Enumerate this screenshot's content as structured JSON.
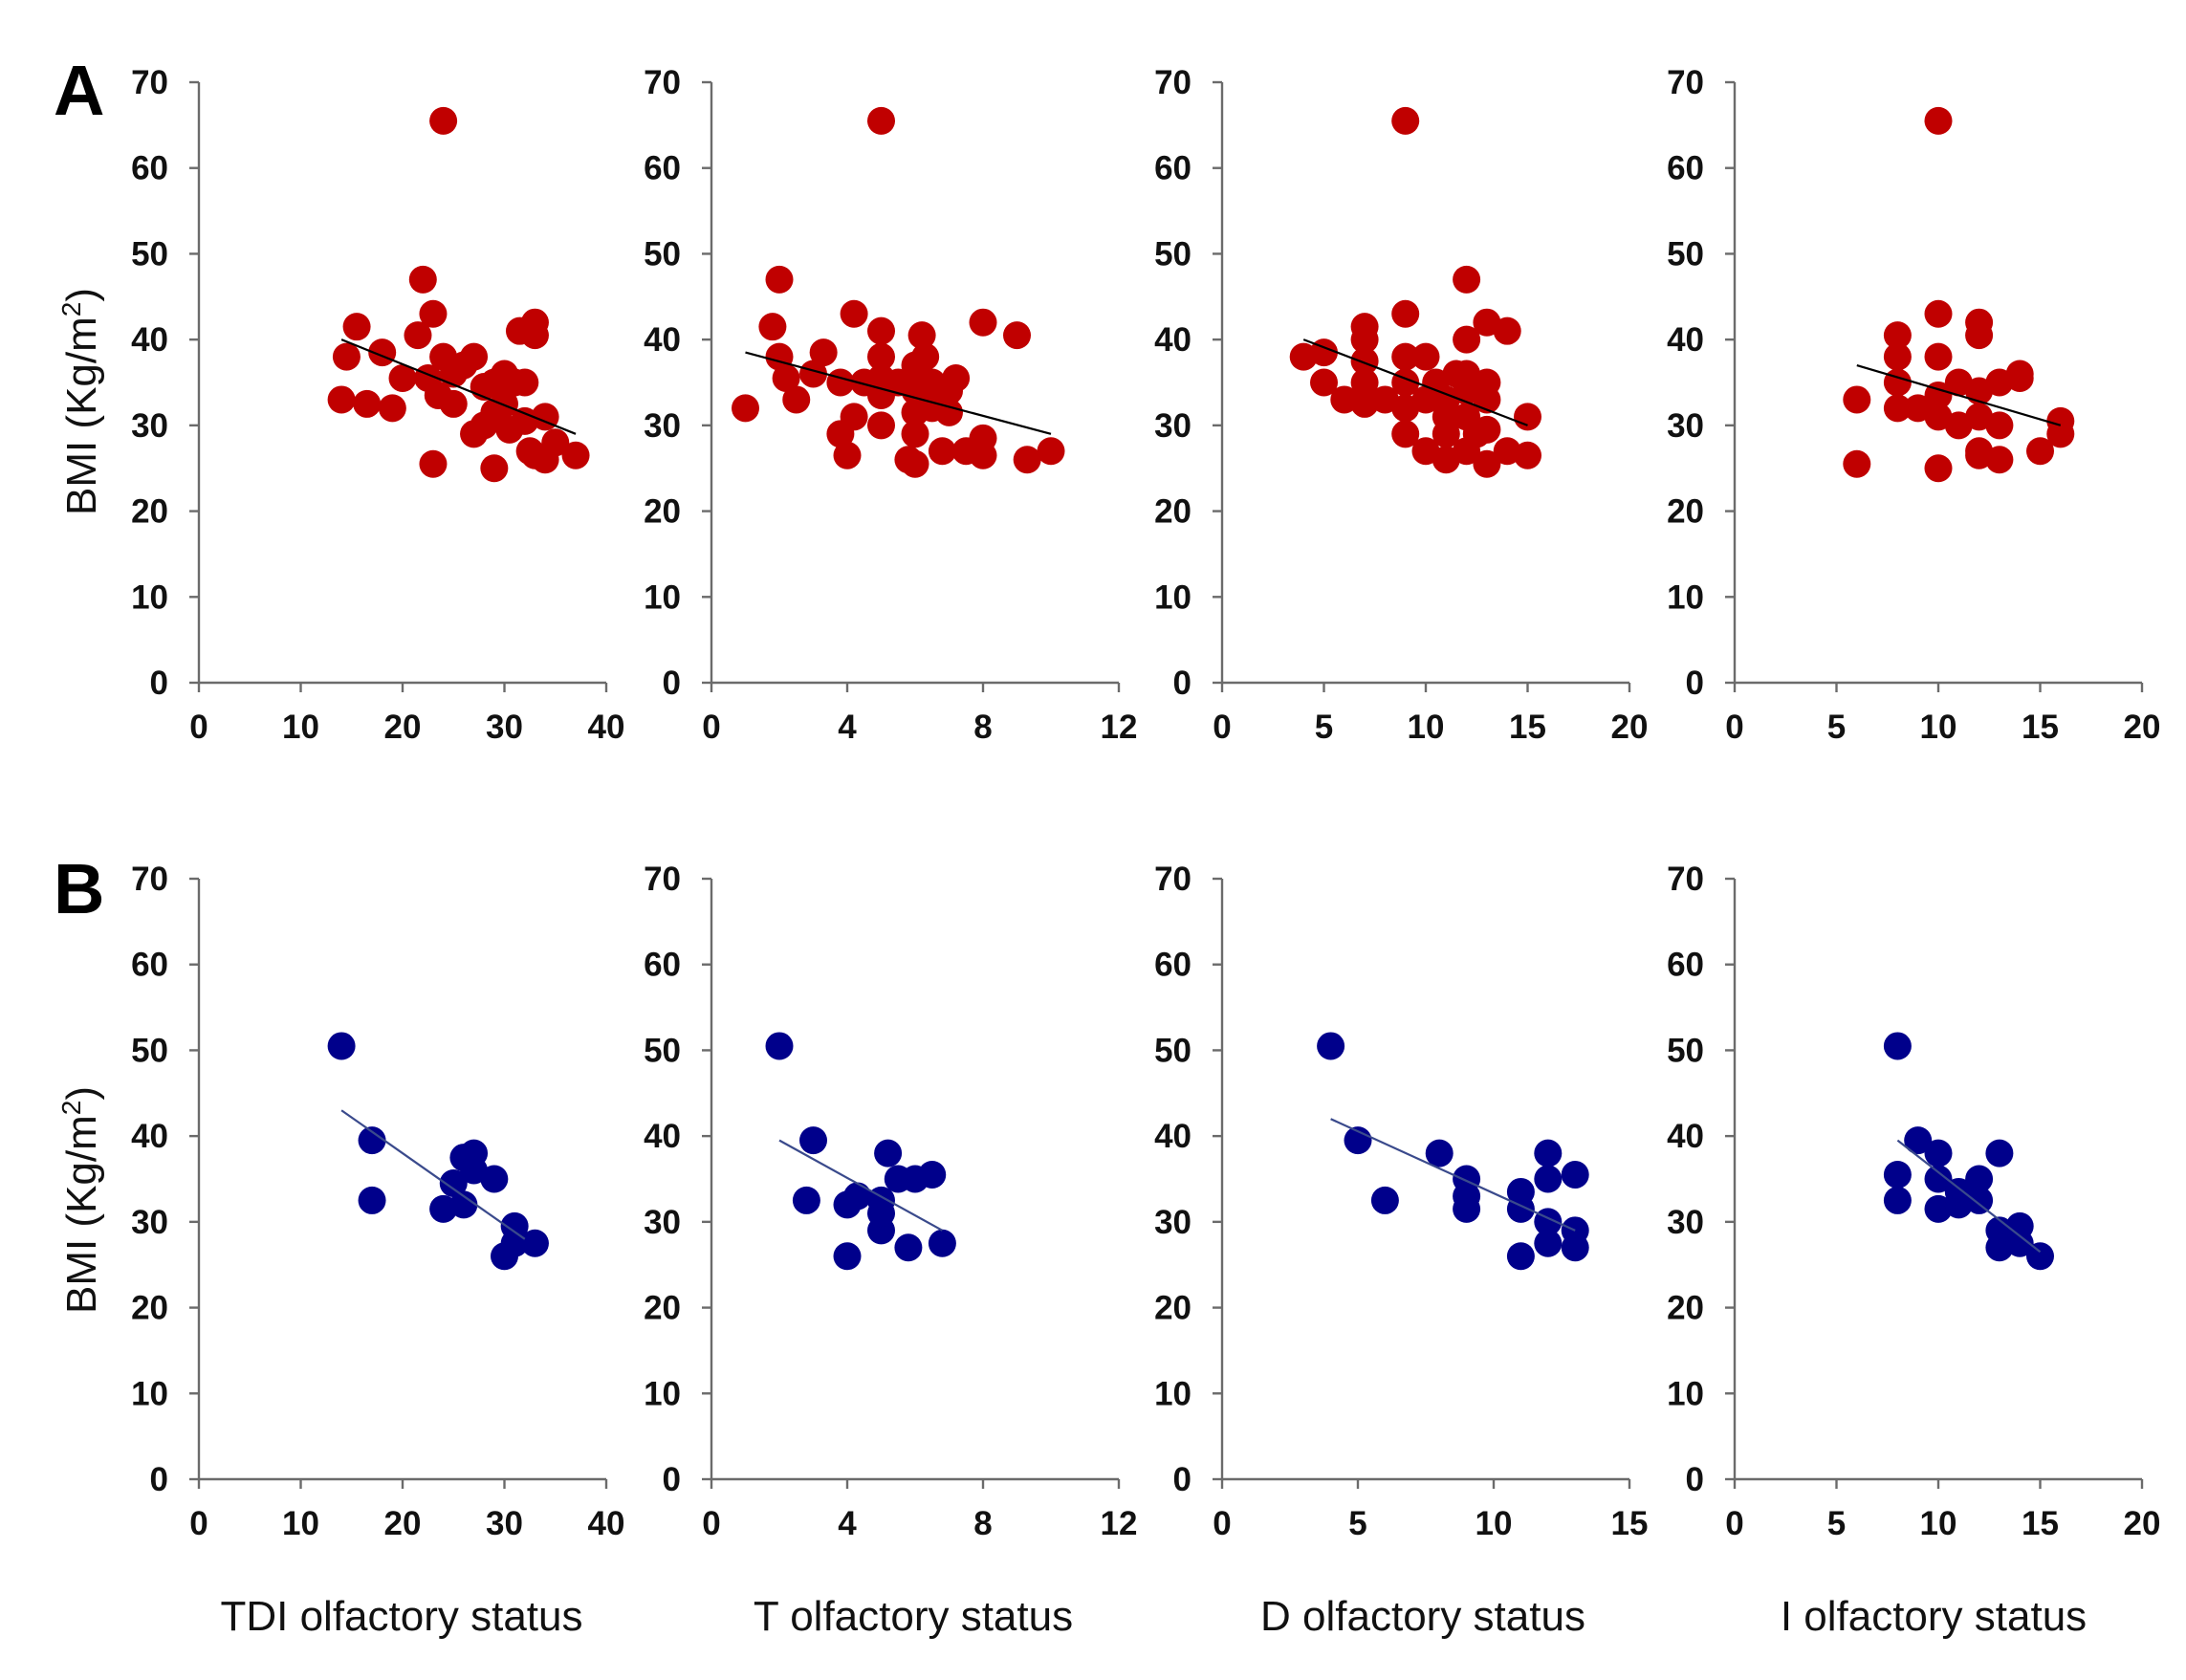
{
  "colors": {
    "row_a": "#c00000",
    "row_b": "#00008b",
    "axis": "#6b6b6b",
    "trend_a": "#000000",
    "trend_b": "#3a4a8c"
  },
  "labels": {
    "panel_a": "A",
    "panel_b": "B",
    "ylabel_main": "BMI (Kg/m",
    "ylabel_sup": "2",
    "ylabel_close": ")"
  },
  "xlabels": [
    "TDI olfactory status",
    "T olfactory status",
    "D olfactory status",
    "I olfactory status"
  ],
  "chart_data": [
    {
      "type": "scatter",
      "row": "A",
      "col": 0,
      "xlim": [
        0,
        40
      ],
      "xticks": [
        0,
        10,
        20,
        30,
        40
      ],
      "ylim": [
        0,
        70
      ],
      "yticks": [
        0,
        10,
        20,
        30,
        40,
        50,
        60,
        70
      ],
      "points": [
        [
          14,
          33
        ],
        [
          14.5,
          38
        ],
        [
          15.5,
          41.5
        ],
        [
          16.5,
          32.5
        ],
        [
          18,
          38.5
        ],
        [
          19,
          32
        ],
        [
          20,
          35.5
        ],
        [
          21.5,
          40.5
        ],
        [
          22,
          47
        ],
        [
          22.5,
          35.5
        ],
        [
          23,
          43
        ],
        [
          23,
          25.5
        ],
        [
          23.5,
          33.5
        ],
        [
          24,
          38
        ],
        [
          24,
          65.5
        ],
        [
          25,
          36
        ],
        [
          25,
          32.5
        ],
        [
          26,
          37
        ],
        [
          27,
          38
        ],
        [
          27,
          29
        ],
        [
          28,
          34.5
        ],
        [
          28,
          30
        ],
        [
          29,
          25
        ],
        [
          29,
          35
        ],
        [
          29,
          31.5
        ],
        [
          30,
          36
        ],
        [
          30,
          32.5
        ],
        [
          30.5,
          29.5
        ],
        [
          31,
          35
        ],
        [
          31.5,
          41
        ],
        [
          32,
          35
        ],
        [
          32,
          30.5
        ],
        [
          32.5,
          27
        ],
        [
          33,
          42
        ],
        [
          33,
          40.5
        ],
        [
          33,
          26.5
        ],
        [
          34,
          31
        ],
        [
          34,
          26
        ],
        [
          35,
          28
        ],
        [
          37,
          26.5
        ]
      ],
      "trend": [
        [
          14,
          40
        ],
        [
          37,
          29
        ]
      ]
    },
    {
      "type": "scatter",
      "row": "A",
      "col": 1,
      "xlim": [
        0,
        12
      ],
      "xticks": [
        0,
        4,
        8,
        12
      ],
      "ylim": [
        0,
        70
      ],
      "yticks": [
        0,
        10,
        20,
        30,
        40,
        50,
        60,
        70
      ],
      "points": [
        [
          1,
          32
        ],
        [
          1.8,
          41.5
        ],
        [
          2,
          47
        ],
        [
          2,
          38
        ],
        [
          2.2,
          35.5
        ],
        [
          2.5,
          33
        ],
        [
          3,
          36
        ],
        [
          3.3,
          38.5
        ],
        [
          3.8,
          35
        ],
        [
          3.8,
          29
        ],
        [
          4,
          26.5
        ],
        [
          4.2,
          31
        ],
        [
          4.2,
          43
        ],
        [
          4.5,
          35
        ],
        [
          5,
          41
        ],
        [
          5,
          38
        ],
        [
          5,
          65.5
        ],
        [
          5,
          35.5
        ],
        [
          5,
          33.5
        ],
        [
          5,
          30
        ],
        [
          5.5,
          35
        ],
        [
          5.8,
          26
        ],
        [
          6,
          25.5
        ],
        [
          6,
          29
        ],
        [
          6,
          31.5
        ],
        [
          6,
          34
        ],
        [
          6,
          37
        ],
        [
          6.2,
          40.5
        ],
        [
          6.3,
          38
        ],
        [
          6.5,
          35
        ],
        [
          6.5,
          32
        ],
        [
          6.8,
          27
        ],
        [
          7,
          31.5
        ],
        [
          7,
          34
        ],
        [
          7.2,
          35.5
        ],
        [
          7.5,
          27
        ],
        [
          8,
          28.5
        ],
        [
          8,
          42
        ],
        [
          8,
          26.5
        ],
        [
          9,
          40.5
        ],
        [
          9.3,
          26
        ],
        [
          10,
          27
        ]
      ],
      "trend": [
        [
          1,
          38.5
        ],
        [
          10,
          29
        ]
      ]
    },
    {
      "type": "scatter",
      "row": "A",
      "col": 2,
      "xlim": [
        0,
        20
      ],
      "xticks": [
        0,
        5,
        10,
        15,
        20
      ],
      "ylim": [
        0,
        70
      ],
      "yticks": [
        0,
        10,
        20,
        30,
        40,
        50,
        60,
        70
      ],
      "points": [
        [
          4,
          38
        ],
        [
          5,
          38.5
        ],
        [
          5,
          35
        ],
        [
          6,
          33
        ],
        [
          7,
          41.5
        ],
        [
          7,
          40
        ],
        [
          7,
          37.5
        ],
        [
          7,
          35
        ],
        [
          7,
          32.5
        ],
        [
          8,
          33
        ],
        [
          9,
          43
        ],
        [
          9,
          38
        ],
        [
          9,
          35
        ],
        [
          9,
          32
        ],
        [
          9,
          29
        ],
        [
          9,
          65.5
        ],
        [
          10,
          38
        ],
        [
          10,
          27
        ],
        [
          10,
          33
        ],
        [
          10.5,
          35
        ],
        [
          11,
          26
        ],
        [
          11,
          29
        ],
        [
          11,
          31
        ],
        [
          11,
          33
        ],
        [
          11.5,
          36
        ],
        [
          12,
          47
        ],
        [
          12,
          40
        ],
        [
          12,
          36
        ],
        [
          12,
          34
        ],
        [
          12,
          31
        ],
        [
          12,
          27
        ],
        [
          12.5,
          29
        ],
        [
          13,
          42
        ],
        [
          13,
          35
        ],
        [
          13,
          33
        ],
        [
          13,
          29.5
        ],
        [
          13,
          25.5
        ],
        [
          14,
          41
        ],
        [
          14,
          27
        ],
        [
          15,
          31
        ],
        [
          15,
          26.5
        ]
      ],
      "trend": [
        [
          4,
          40
        ],
        [
          15,
          30
        ]
      ]
    },
    {
      "type": "scatter",
      "row": "A",
      "col": 3,
      "xlim": [
        0,
        20
      ],
      "xticks": [
        0,
        5,
        10,
        15,
        20
      ],
      "ylim": [
        0,
        70
      ],
      "yticks": [
        0,
        10,
        20,
        30,
        40,
        50,
        60,
        70
      ],
      "points": [
        [
          6,
          33
        ],
        [
          6,
          25.5
        ],
        [
          8,
          40.5
        ],
        [
          8,
          38
        ],
        [
          8,
          35
        ],
        [
          8,
          32
        ],
        [
          9,
          32
        ],
        [
          10,
          43
        ],
        [
          10,
          38
        ],
        [
          10,
          33.5
        ],
        [
          10,
          31
        ],
        [
          10,
          25
        ],
        [
          10,
          65.5
        ],
        [
          11,
          35
        ],
        [
          11,
          30
        ],
        [
          12,
          42
        ],
        [
          12,
          40.5
        ],
        [
          12,
          34
        ],
        [
          12,
          31
        ],
        [
          12,
          27
        ],
        [
          12,
          26.5
        ],
        [
          13,
          35
        ],
        [
          13,
          30
        ],
        [
          13,
          26
        ],
        [
          14,
          35.5
        ],
        [
          14,
          36
        ],
        [
          15,
          27
        ],
        [
          16,
          30.5
        ],
        [
          16,
          29
        ]
      ],
      "trend": [
        [
          6,
          37
        ],
        [
          16,
          30
        ]
      ]
    },
    {
      "type": "scatter",
      "row": "B",
      "col": 0,
      "xlim": [
        0,
        40
      ],
      "xticks": [
        0,
        10,
        20,
        30,
        40
      ],
      "ylim": [
        0,
        70
      ],
      "yticks": [
        0,
        10,
        20,
        30,
        40,
        50,
        60,
        70
      ],
      "points": [
        [
          14,
          50.5
        ],
        [
          17,
          39.5
        ],
        [
          17,
          32.5
        ],
        [
          24,
          31.5
        ],
        [
          25,
          34.5
        ],
        [
          26,
          37.5
        ],
        [
          26,
          32
        ],
        [
          27,
          38
        ],
        [
          27,
          36
        ],
        [
          29,
          35
        ],
        [
          30,
          26
        ],
        [
          31,
          29.5
        ],
        [
          31,
          27.5
        ],
        [
          33,
          27.5
        ]
      ],
      "trend": [
        [
          14,
          43
        ],
        [
          32,
          28
        ]
      ]
    },
    {
      "type": "scatter",
      "row": "B",
      "col": 1,
      "xlim": [
        0,
        12
      ],
      "xticks": [
        0,
        4,
        8,
        12
      ],
      "ylim": [
        0,
        70
      ],
      "yticks": [
        0,
        10,
        20,
        30,
        40,
        50,
        60,
        70
      ],
      "points": [
        [
          2,
          50.5
        ],
        [
          2.8,
          32.5
        ],
        [
          3,
          39.5
        ],
        [
          4,
          26
        ],
        [
          4,
          32
        ],
        [
          4.3,
          33
        ],
        [
          5,
          29
        ],
        [
          5,
          31
        ],
        [
          5,
          32.5
        ],
        [
          5.2,
          38
        ],
        [
          5.5,
          35
        ],
        [
          5.8,
          27
        ],
        [
          6,
          35
        ],
        [
          6.5,
          35.5
        ],
        [
          6.8,
          27.5
        ]
      ],
      "trend": [
        [
          2,
          39.5
        ],
        [
          6.8,
          29
        ]
      ]
    },
    {
      "type": "scatter",
      "row": "B",
      "col": 2,
      "xlim": [
        0,
        15
      ],
      "xticks": [
        0,
        5,
        10,
        15
      ],
      "ylim": [
        0,
        70
      ],
      "yticks": [
        0,
        10,
        20,
        30,
        40,
        50,
        60,
        70
      ],
      "points": [
        [
          4,
          50.5
        ],
        [
          5,
          39.5
        ],
        [
          6,
          32.5
        ],
        [
          8,
          38
        ],
        [
          9,
          35
        ],
        [
          9,
          33
        ],
        [
          9,
          31.5
        ],
        [
          11,
          33.5
        ],
        [
          11,
          31.5
        ],
        [
          11,
          26
        ],
        [
          12,
          38
        ],
        [
          12,
          35
        ],
        [
          12,
          30
        ],
        [
          12,
          27.5
        ],
        [
          13,
          35.5
        ],
        [
          13,
          29
        ],
        [
          13,
          27
        ]
      ],
      "trend": [
        [
          4,
          42
        ],
        [
          13,
          29
        ]
      ]
    },
    {
      "type": "scatter",
      "row": "B",
      "col": 3,
      "xlim": [
        0,
        20
      ],
      "xticks": [
        0,
        5,
        10,
        15,
        20
      ],
      "ylim": [
        0,
        70
      ],
      "yticks": [
        0,
        10,
        20,
        30,
        40,
        50,
        60,
        70
      ],
      "points": [
        [
          8,
          50.5
        ],
        [
          8,
          35.5
        ],
        [
          8,
          32.5
        ],
        [
          9,
          39.5
        ],
        [
          10,
          38
        ],
        [
          10,
          35
        ],
        [
          10,
          31.5
        ],
        [
          11,
          32
        ],
        [
          11,
          33.5
        ],
        [
          12,
          35
        ],
        [
          12,
          32.5
        ],
        [
          13,
          38
        ],
        [
          13,
          29
        ],
        [
          13,
          27
        ],
        [
          14,
          27.5
        ],
        [
          14,
          29.5
        ],
        [
          15,
          26
        ]
      ],
      "trend": [
        [
          8,
          39.5
        ],
        [
          15,
          26.5
        ]
      ]
    }
  ]
}
